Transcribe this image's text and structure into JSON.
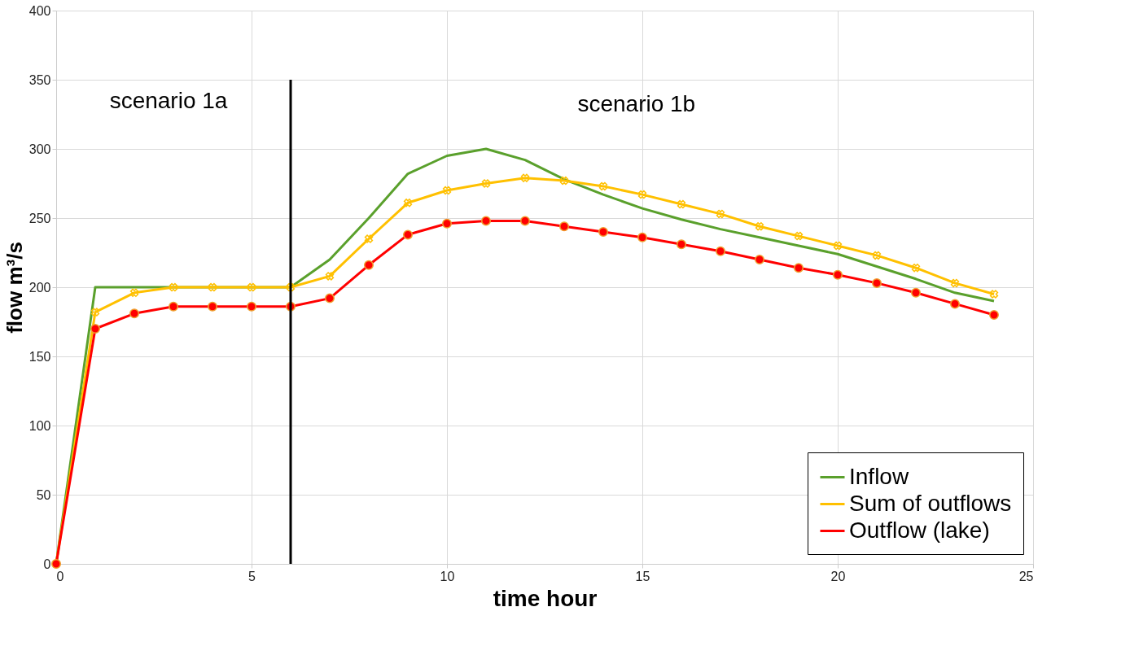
{
  "chart_data": {
    "type": "line",
    "xlabel": "time hour",
    "ylabel": "flow m³/s",
    "x": [
      0,
      1,
      2,
      3,
      4,
      5,
      6,
      7,
      8,
      9,
      10,
      11,
      12,
      13,
      14,
      15,
      16,
      17,
      18,
      19,
      20,
      21,
      22,
      23,
      24
    ],
    "series": [
      {
        "name": " Inflow",
        "color": "#5aa02c",
        "marker": "none",
        "values": [
          0,
          200,
          200,
          200,
          200,
          200,
          200,
          220,
          250,
          282,
          295,
          300,
          292,
          278,
          267,
          257,
          249,
          242,
          236,
          230,
          224,
          215,
          206,
          196,
          190
        ]
      },
      {
        "name": "Sum of outflows",
        "color": "#ffc000",
        "marker": "cross",
        "values": [
          0,
          182,
          196,
          200,
          200,
          200,
          200,
          208,
          235,
          261,
          270,
          275,
          279,
          277,
          273,
          267,
          260,
          253,
          244,
          237,
          230,
          223,
          214,
          203,
          195
        ]
      },
      {
        "name": "Outflow (lake)",
        "color": "#ff0000",
        "marker": "circle",
        "values": [
          0,
          170,
          181,
          186,
          186,
          186,
          186,
          192,
          216,
          238,
          246,
          248,
          248,
          244,
          240,
          236,
          231,
          226,
          220,
          214,
          209,
          203,
          196,
          188,
          180
        ]
      }
    ],
    "xlim": [
      0,
      25
    ],
    "xticks": [
      0,
      5,
      10,
      15,
      20,
      25
    ],
    "ylim": [
      0,
      400
    ],
    "yticks": [
      0,
      50,
      100,
      150,
      200,
      250,
      300,
      350,
      400
    ],
    "ref_lines": [
      {
        "axis": "x",
        "value": 6,
        "color": "#000000"
      }
    ],
    "annotations": [
      "scenario 1a",
      "scenario 1b"
    ],
    "grid": true,
    "legend": "bottom right",
    "line_style": "solid"
  }
}
